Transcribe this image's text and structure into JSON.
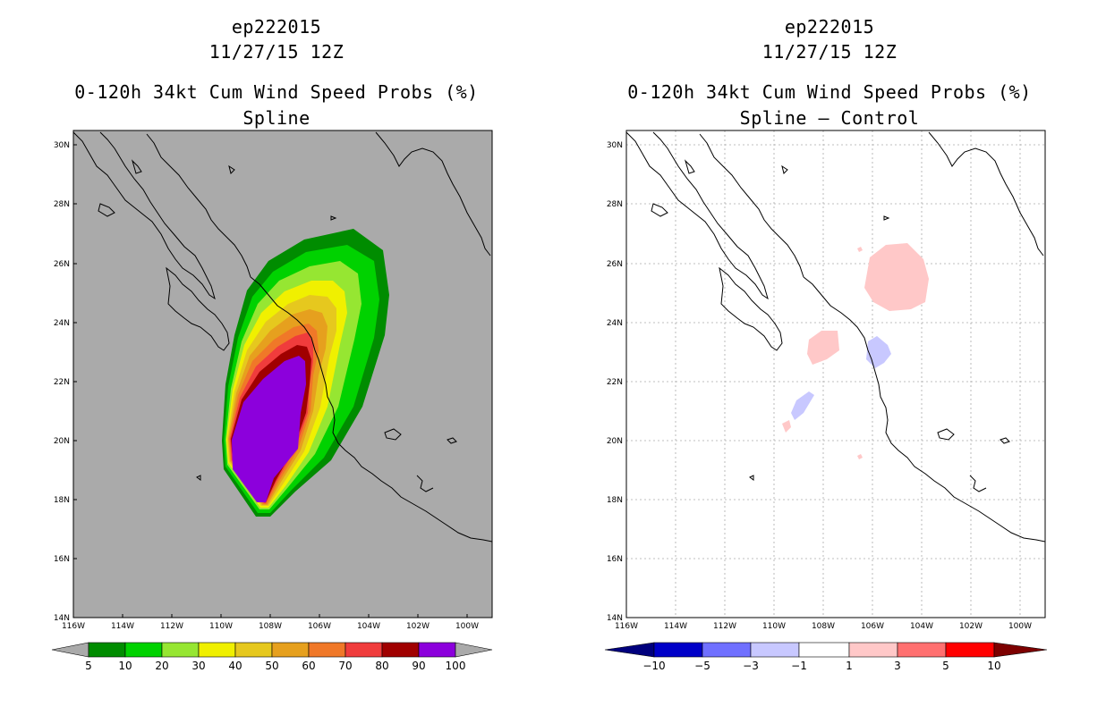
{
  "panels": [
    {
      "storm_id": "ep222015",
      "datetime": "11/27/15 12Z",
      "product": "0-120h 34kt Cum Wind Speed Probs (%)",
      "subtitle": "Spline",
      "colorbar_labels": [
        "5",
        "10",
        "20",
        "30",
        "40",
        "50",
        "60",
        "70",
        "80",
        "90",
        "100"
      ],
      "colorbar_colors": [
        "#008c00",
        "#00d200",
        "#96e632",
        "#f0f000",
        "#e6c81e",
        "#e6a01e",
        "#f07828",
        "#f03c3c",
        "#a00000",
        "#8c00dc"
      ]
    },
    {
      "storm_id": "ep222015",
      "datetime": "11/27/15 12Z",
      "product": "0-120h 34kt Cum Wind Speed Probs (%)",
      "subtitle": "Spline – Control",
      "colorbar_labels": [
        "−10",
        "−5",
        "−3",
        "−1",
        "1",
        "3",
        "5",
        "10"
      ],
      "colorbar_colors": [
        "#0000c8",
        "#7070ff",
        "#c8c8ff",
        "#ffffff",
        "#ffc8c8",
        "#ff7070",
        "#ff0000"
      ]
    }
  ],
  "axes": {
    "lat_labels": [
      "30N",
      "28N",
      "26N",
      "24N",
      "22N",
      "20N",
      "18N",
      "16N",
      "14N"
    ],
    "lon_labels": [
      "116W",
      "114W",
      "112W",
      "110W",
      "108W",
      "106W",
      "104W",
      "102W",
      "100W"
    ]
  },
  "colors": {
    "map_background_left": "#aaaaaa",
    "map_background_right": "#ffffff",
    "coastline": "#000000",
    "grid": "#aaaaaa",
    "outside_arrow": "#aaaaaa",
    "neg_end": "#00007d",
    "pos_end": "#7d0000"
  }
}
